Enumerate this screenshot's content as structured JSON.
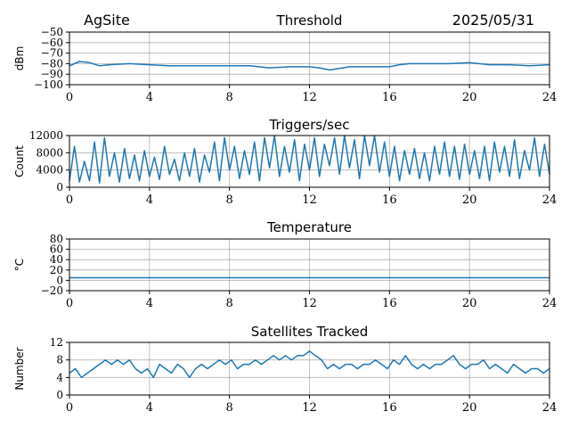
{
  "header": {
    "site": "AgSite",
    "date": "2025/05/31"
  },
  "colors": {
    "series": "#1f77b4",
    "grid": "#b0b0b0",
    "axis": "#000000"
  },
  "chart_data": [
    {
      "type": "line",
      "title": "Threshold",
      "xlabel": "",
      "ylabel": "dBm",
      "xlim": [
        0,
        24
      ],
      "ylim": [
        -100,
        -50
      ],
      "xticks": [
        0,
        4,
        8,
        12,
        16,
        20,
        24
      ],
      "yticks": [
        -100,
        -90,
        -80,
        -70,
        -60,
        -50
      ],
      "grid": true,
      "series": [
        {
          "x": [
            0,
            0.5,
            1,
            1.5,
            2,
            3,
            4,
            5,
            6,
            7,
            8,
            9,
            10,
            11,
            12,
            12.5,
            13,
            14,
            15,
            16,
            16.5,
            17,
            18,
            19,
            20,
            21,
            22,
            23,
            24
          ],
          "y": [
            -82,
            -78,
            -79,
            -82,
            -81,
            -80,
            -81,
            -82,
            -82,
            -82,
            -82,
            -82,
            -84,
            -83,
            -83,
            -84,
            -86,
            -83,
            -83,
            -83,
            -81,
            -80,
            -80,
            -80,
            -79,
            -81,
            -81,
            -82,
            -81
          ]
        }
      ]
    },
    {
      "type": "line",
      "title": "Triggers/sec",
      "xlabel": "",
      "ylabel": "Count",
      "xlim": [
        0,
        24
      ],
      "ylim": [
        0,
        12000
      ],
      "xticks": [
        0,
        4,
        8,
        12,
        16,
        20,
        24
      ],
      "yticks": [
        0,
        4000,
        8000,
        12000
      ],
      "grid": true,
      "series": [
        {
          "x": [
            0,
            0.25,
            0.5,
            0.75,
            1,
            1.25,
            1.5,
            1.75,
            2,
            2.25,
            2.5,
            2.75,
            3,
            3.25,
            3.5,
            3.75,
            4,
            4.25,
            4.5,
            4.75,
            5,
            5.25,
            5.5,
            5.75,
            6,
            6.25,
            6.5,
            6.75,
            7,
            7.25,
            7.5,
            7.75,
            8,
            8.25,
            8.5,
            8.75,
            9,
            9.25,
            9.5,
            9.75,
            10,
            10.25,
            10.5,
            10.75,
            11,
            11.25,
            11.5,
            11.75,
            12,
            12.25,
            12.5,
            12.75,
            13,
            13.25,
            13.5,
            13.75,
            14,
            14.25,
            14.5,
            14.75,
            15,
            15.25,
            15.5,
            15.75,
            16,
            16.25,
            16.5,
            16.75,
            17,
            17.25,
            17.5,
            17.75,
            18,
            18.25,
            18.5,
            18.75,
            19,
            19.25,
            19.5,
            19.75,
            20,
            20.25,
            20.5,
            20.75,
            21,
            21.25,
            21.5,
            21.75,
            22,
            22.25,
            22.5,
            22.75,
            23,
            23.25,
            23.5,
            23.75,
            24
          ],
          "y": [
            1500,
            9500,
            1200,
            6000,
            1500,
            10500,
            1000,
            11500,
            2500,
            8000,
            1200,
            9000,
            2000,
            7500,
            1500,
            8500,
            2500,
            7000,
            1800,
            9500,
            3000,
            6500,
            1500,
            8000,
            2500,
            9000,
            1200,
            7500,
            3500,
            10500,
            1500,
            11500,
            4000,
            9500,
            2000,
            8500,
            3000,
            10500,
            1500,
            11500,
            4500,
            12000,
            2500,
            9500,
            3500,
            11000,
            1500,
            10000,
            4000,
            11500,
            2500,
            10000,
            5000,
            11500,
            3000,
            12000,
            4500,
            11000,
            2000,
            12000,
            5000,
            12000,
            3500,
            10500,
            2500,
            9500,
            1500,
            8500,
            3000,
            9000,
            2000,
            8000,
            1500,
            9500,
            3000,
            10500,
            2500,
            9500,
            1800,
            10000,
            3000,
            8500,
            2000,
            9500,
            1500,
            10500,
            3500,
            9500,
            2500,
            11000,
            2000,
            8500,
            4000,
            11500,
            2500,
            10000,
            3000
          ]
        }
      ]
    },
    {
      "type": "line",
      "title": "Temperature",
      "xlabel": "",
      "ylabel": "°C",
      "xlim": [
        0,
        24
      ],
      "ylim": [
        -20,
        80
      ],
      "xticks": [
        0,
        4,
        8,
        12,
        16,
        20,
        24
      ],
      "yticks": [
        -20,
        0,
        20,
        40,
        60,
        80
      ],
      "grid": true,
      "series": [
        {
          "x": [
            0,
            24
          ],
          "y": [
            5,
            5
          ]
        }
      ]
    },
    {
      "type": "line",
      "title": "Satellites Tracked",
      "xlabel": "",
      "ylabel": "Number",
      "xlim": [
        0,
        24
      ],
      "ylim": [
        0,
        12
      ],
      "xticks": [
        0,
        4,
        8,
        12,
        16,
        20,
        24
      ],
      "yticks": [
        0,
        4,
        8,
        12
      ],
      "grid": true,
      "series": [
        {
          "x": [
            0,
            0.3,
            0.6,
            0.9,
            1.2,
            1.5,
            1.8,
            2.1,
            2.4,
            2.7,
            3,
            3.3,
            3.6,
            3.9,
            4.2,
            4.5,
            4.8,
            5.1,
            5.4,
            5.7,
            6,
            6.3,
            6.6,
            6.9,
            7.2,
            7.5,
            7.8,
            8.1,
            8.4,
            8.7,
            9,
            9.3,
            9.6,
            9.9,
            10.2,
            10.5,
            10.8,
            11.1,
            11.4,
            11.7,
            12,
            12.3,
            12.6,
            12.9,
            13.2,
            13.5,
            13.8,
            14.1,
            14.4,
            14.7,
            15,
            15.3,
            15.6,
            15.9,
            16.2,
            16.5,
            16.8,
            17.1,
            17.4,
            17.7,
            18,
            18.3,
            18.6,
            18.9,
            19.2,
            19.5,
            19.8,
            20.1,
            20.4,
            20.7,
            21,
            21.3,
            21.6,
            21.9,
            22.2,
            22.5,
            22.8,
            23.1,
            23.4,
            23.7,
            24
          ],
          "y": [
            5,
            6,
            4,
            5,
            6,
            7,
            8,
            7,
            8,
            7,
            8,
            6,
            5,
            6,
            4,
            7,
            6,
            5,
            7,
            6,
            4,
            6,
            7,
            6,
            7,
            8,
            7,
            8,
            6,
            7,
            7,
            8,
            7,
            8,
            9,
            8,
            9,
            8,
            9,
            9,
            10,
            9,
            8,
            6,
            7,
            6,
            7,
            7,
            6,
            7,
            7,
            8,
            7,
            6,
            8,
            7,
            9,
            7,
            6,
            7,
            6,
            7,
            7,
            8,
            9,
            7,
            6,
            7,
            7,
            8,
            6,
            7,
            6,
            5,
            7,
            6,
            5,
            6,
            6,
            5,
            6
          ]
        }
      ]
    }
  ]
}
